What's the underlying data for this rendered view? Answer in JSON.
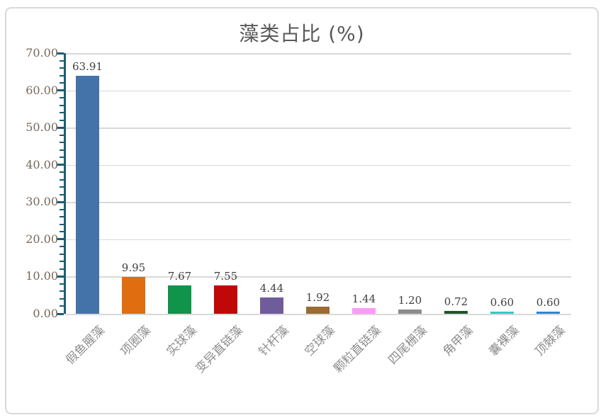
{
  "chart_data": {
    "type": "bar",
    "title": "藻类占比 (%)",
    "categories": [
      "假鱼腥藻",
      "项圈藻",
      "实球藻",
      "变异直链藻",
      "针杆藻",
      "空球藻",
      "颗粒直链藻",
      "四尾栅藻",
      "角甲藻",
      "囊裸藻",
      "顶棘藻"
    ],
    "values": [
      63.91,
      9.95,
      7.67,
      7.55,
      4.44,
      1.92,
      1.44,
      1.2,
      0.72,
      0.6,
      0.6
    ],
    "value_labels": [
      "63.91",
      "9.95",
      "7.67",
      "7.55",
      "4.44",
      "1.92",
      "1.44",
      "1.20",
      "0.72",
      "0.60",
      "0.60"
    ],
    "bar_colors": [
      "#4473a9",
      "#e06d0f",
      "#10934a",
      "#c00808",
      "#6f5c9b",
      "#9a6b33",
      "#fb9bf4",
      "#8c8c8c",
      "#1f5329",
      "#35c8c4",
      "#3282d5"
    ],
    "xlabel": "",
    "ylabel": "",
    "ylim": [
      0,
      70
    ],
    "y_major_step": 10,
    "y_minor_step": 2,
    "y_tick_labels": [
      "0.00",
      "10.00",
      "20.00",
      "30.00",
      "40.00",
      "50.00",
      "60.00",
      "70.00"
    ],
    "grid": true,
    "legend": "none",
    "data_labels": "above bars",
    "x_label_rotation_deg": 45
  },
  "colors": {
    "background": "#ffffff",
    "frame_border": "#d9d9d9",
    "gridline": "#d9d9d9",
    "axis": "#1e5c74",
    "title": "#595959",
    "y_tick_label": "#77695a",
    "data_label": "#404040",
    "x_label": "#8e8e8e"
  }
}
